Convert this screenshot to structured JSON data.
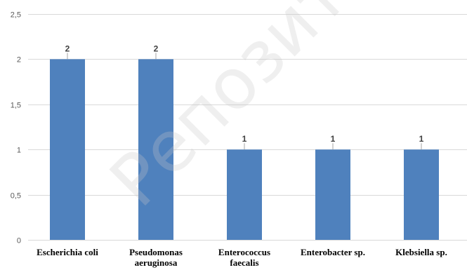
{
  "chart_data": {
    "type": "bar",
    "categories": [
      [
        "Escherichia coli"
      ],
      [
        "Pseudomonas",
        "aeruginosa"
      ],
      [
        "Enterococcus",
        "faecalis"
      ],
      [
        "Enterobacter sp."
      ],
      [
        "Klebsiella sp."
      ]
    ],
    "values": [
      2,
      2,
      1,
      1,
      1
    ],
    "data_labels": [
      "2",
      "2",
      "1",
      "1",
      "1"
    ],
    "ylim": [
      0,
      2.5
    ],
    "yticks": [
      0,
      0.5,
      1,
      1.5,
      2,
      2.5
    ],
    "ytick_labels": [
      "0",
      "0,5",
      "1",
      "1,5",
      "2",
      "2,5"
    ],
    "title": "",
    "xlabel": "",
    "ylabel": "",
    "grid": true,
    "legend": "none",
    "bar_color": "#4f81bd",
    "grid_color": "#d9d9d9"
  },
  "watermark": {
    "text": "Репозиторий"
  }
}
